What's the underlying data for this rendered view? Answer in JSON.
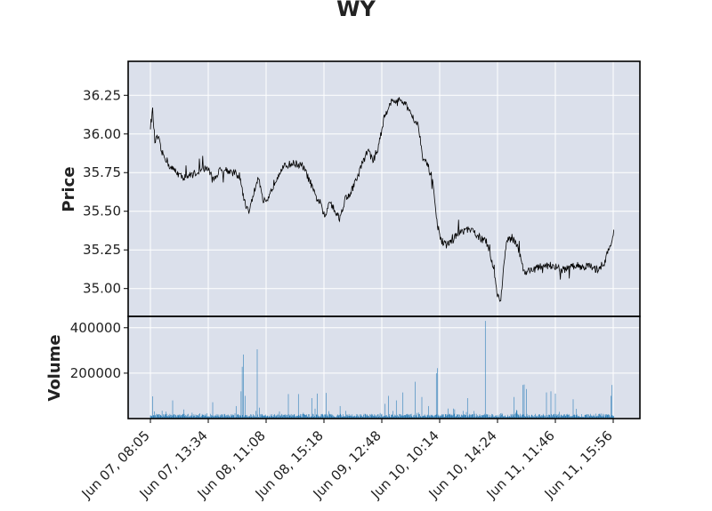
{
  "chart_data": {
    "type": "line",
    "title": "WY",
    "panels": {
      "price": {
        "ylabel": "Price",
        "ylim": [
          34.82,
          36.47
        ],
        "yticks": [
          35.0,
          35.25,
          35.5,
          35.75,
          36.0,
          36.25
        ],
        "ytick_labels": [
          "35.00",
          "35.25",
          "35.50",
          "35.75",
          "36.00",
          "36.25"
        ],
        "line_color": "#000000"
      },
      "volume": {
        "ylabel": "Volume",
        "ylim": [
          0,
          450000
        ],
        "yticks": [
          200000,
          400000
        ],
        "ytick_labels": [
          "200000",
          "400000"
        ],
        "bar_color": "#1f77b4"
      }
    },
    "x_ticks": [
      {
        "index": 0,
        "label": "Jun 07, 08:05"
      },
      {
        "index": 104,
        "label": "Jun 07, 13:34"
      },
      {
        "index": 208,
        "label": "Jun 08, 11:08"
      },
      {
        "index": 312,
        "label": "Jun 08, 15:18"
      },
      {
        "index": 416,
        "label": "Jun 09, 12:48"
      },
      {
        "index": 520,
        "label": "Jun 10, 10:14"
      },
      {
        "index": 624,
        "label": "Jun 10, 14:24"
      },
      {
        "index": 728,
        "label": "Jun 11, 11:46"
      },
      {
        "index": 832,
        "label": "Jun 11, 15:56"
      }
    ],
    "x_range": [
      -40,
      880
    ],
    "price_anchors": [
      [
        0,
        36.05
      ],
      [
        4,
        36.15
      ],
      [
        8,
        35.95
      ],
      [
        14,
        35.98
      ],
      [
        20,
        35.88
      ],
      [
        28,
        35.84
      ],
      [
        36,
        35.78
      ],
      [
        46,
        35.76
      ],
      [
        56,
        35.72
      ],
      [
        70,
        35.73
      ],
      [
        88,
        35.76
      ],
      [
        104,
        35.78
      ],
      [
        112,
        35.7
      ],
      [
        124,
        35.76
      ],
      [
        136,
        35.77
      ],
      [
        148,
        35.75
      ],
      [
        160,
        35.73
      ],
      [
        170,
        35.55
      ],
      [
        178,
        35.5
      ],
      [
        186,
        35.62
      ],
      [
        194,
        35.72
      ],
      [
        202,
        35.57
      ],
      [
        210,
        35.55
      ],
      [
        222,
        35.68
      ],
      [
        234,
        35.77
      ],
      [
        246,
        35.8
      ],
      [
        260,
        35.81
      ],
      [
        274,
        35.79
      ],
      [
        286,
        35.7
      ],
      [
        296,
        35.6
      ],
      [
        306,
        35.55
      ],
      [
        314,
        35.45
      ],
      [
        322,
        35.58
      ],
      [
        330,
        35.52
      ],
      [
        340,
        35.45
      ],
      [
        350,
        35.58
      ],
      [
        360,
        35.62
      ],
      [
        372,
        35.72
      ],
      [
        382,
        35.82
      ],
      [
        392,
        35.9
      ],
      [
        400,
        35.82
      ],
      [
        410,
        35.92
      ],
      [
        420,
        36.1
      ],
      [
        430,
        36.2
      ],
      [
        444,
        36.22
      ],
      [
        456,
        36.2
      ],
      [
        466,
        36.15
      ],
      [
        474,
        36.1
      ],
      [
        482,
        36.05
      ],
      [
        490,
        35.85
      ],
      [
        500,
        35.78
      ],
      [
        508,
        35.7
      ],
      [
        514,
        35.45
      ],
      [
        522,
        35.32
      ],
      [
        530,
        35.28
      ],
      [
        540,
        35.3
      ],
      [
        552,
        35.35
      ],
      [
        566,
        35.38
      ],
      [
        580,
        35.37
      ],
      [
        592,
        35.33
      ],
      [
        604,
        35.3
      ],
      [
        616,
        35.15
      ],
      [
        624,
        34.96
      ],
      [
        630,
        34.92
      ],
      [
        634,
        35.1
      ],
      [
        640,
        35.3
      ],
      [
        650,
        35.33
      ],
      [
        660,
        35.28
      ],
      [
        666,
        35.2
      ],
      [
        672,
        35.1
      ],
      [
        682,
        35.12
      ],
      [
        694,
        35.13
      ],
      [
        708,
        35.15
      ],
      [
        722,
        35.15
      ],
      [
        738,
        35.12
      ],
      [
        752,
        35.13
      ],
      [
        766,
        35.15
      ],
      [
        780,
        35.14
      ],
      [
        790,
        35.15
      ],
      [
        796,
        35.12
      ],
      [
        806,
        35.13
      ],
      [
        816,
        35.17
      ],
      [
        824,
        35.25
      ],
      [
        830,
        35.3
      ],
      [
        833,
        35.4
      ]
    ],
    "price_noise": 0.025,
    "volume_base": 14000,
    "volume_spikes": [
      [
        4,
        98000
      ],
      [
        40,
        80000
      ],
      [
        60,
        40000
      ],
      [
        112,
        72000
      ],
      [
        154,
        55000
      ],
      [
        163,
        120000
      ],
      [
        165,
        228000
      ],
      [
        167,
        282000
      ],
      [
        170,
        100000
      ],
      [
        192,
        305000
      ],
      [
        196,
        48000
      ],
      [
        248,
        108000
      ],
      [
        266,
        108000
      ],
      [
        290,
        90000
      ],
      [
        300,
        110000
      ],
      [
        316,
        113000
      ],
      [
        341,
        55000
      ],
      [
        422,
        65000
      ],
      [
        428,
        100000
      ],
      [
        442,
        80000
      ],
      [
        454,
        115000
      ],
      [
        476,
        162000
      ],
      [
        488,
        95000
      ],
      [
        500,
        55000
      ],
      [
        514,
        200000
      ],
      [
        516,
        222000
      ],
      [
        570,
        90000
      ],
      [
        602,
        430000
      ],
      [
        654,
        95000
      ],
      [
        670,
        148000
      ],
      [
        672,
        150000
      ],
      [
        676,
        130000
      ],
      [
        712,
        115000
      ],
      [
        720,
        120000
      ],
      [
        728,
        110000
      ],
      [
        760,
        85000
      ],
      [
        828,
        100000
      ],
      [
        830,
        148000
      ]
    ]
  }
}
